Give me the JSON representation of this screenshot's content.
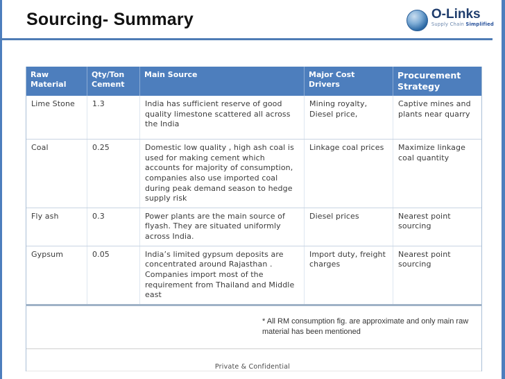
{
  "slide": {
    "title": "Sourcing- Summary",
    "footer": "Private & Confidential",
    "footnote": "* All RM consumption fig. are approximate and only main raw material has been mentioned"
  },
  "logo": {
    "name": "O-Links",
    "tagline_prefix": "Supply Chain ",
    "tagline_bold": "Simplified",
    "icon": "blue-sphere-icon"
  },
  "table": {
    "headers": [
      "Raw Material",
      "Qty/Ton Cement",
      "Main Source",
      "Major Cost Drivers",
      "Procurement Strategy"
    ],
    "rows": [
      {
        "material": "Lime Stone",
        "qty": "1.3",
        "source": "India has sufficient reserve of good quality limestone scattered all across the India",
        "drivers": "Mining royalty, Diesel price,",
        "strategy": "Captive mines and plants near quarry"
      },
      {
        "material": "Coal",
        "qty": "0.25",
        "source": "Domestic low quality , high ash coal is used for making cement which accounts for majority of consumption, companies also use imported coal during peak demand season to hedge supply risk",
        "drivers": "Linkage coal prices",
        "strategy": "Maximize linkage coal quantity"
      },
      {
        "material": "Fly ash",
        "qty": "0.3",
        "source": "Power plants are the main source of flyash. They are situated uniformly across India.",
        "drivers": "Diesel prices",
        "strategy": "Nearest point sourcing"
      },
      {
        "material": "Gypsum",
        "qty": "0.05",
        "source": "India’s limited gypsum deposits are concentrated around Rajasthan . Companies import most of the requirement from Thailand and Middle east",
        "drivers": "Import duty, freight charges",
        "strategy": "Nearest point sourcing"
      }
    ]
  },
  "colors": {
    "accent": "#4d7ebd",
    "logo-navy": "#1f3d6d",
    "text": "#3a3a3a",
    "border-light": "#c8d4e2",
    "border-heavy": "#9fb2c6"
  }
}
